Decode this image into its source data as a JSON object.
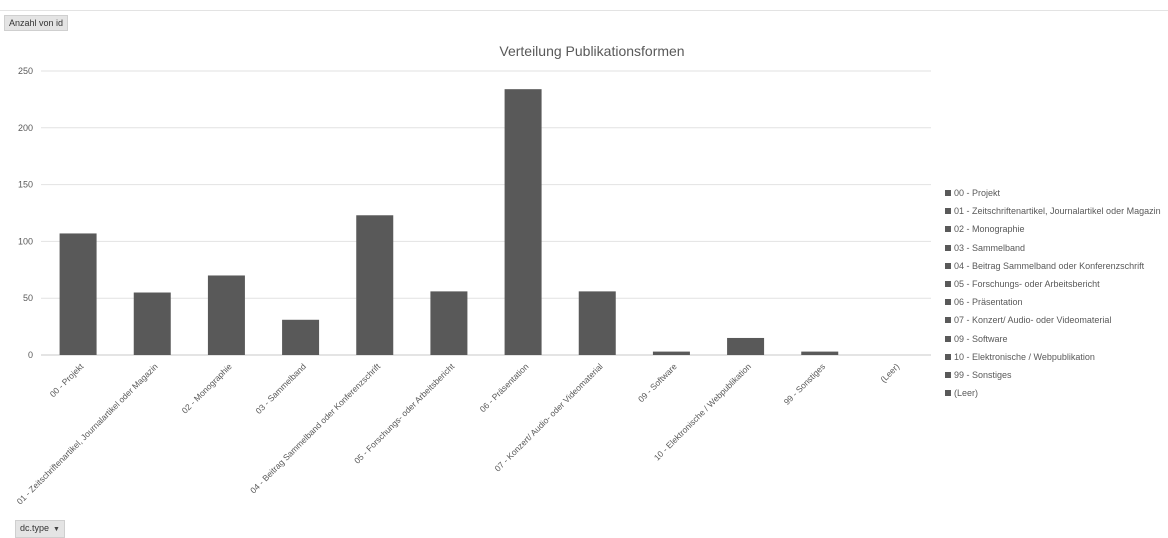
{
  "values_field_button": "Anzahl von id",
  "axis_field_button": "dc.type",
  "axis_field_arrow": "▼",
  "chart_data": {
    "type": "bar",
    "title": "Verteilung Publikationsformen",
    "xlabel": "",
    "ylabel": "",
    "ylim": [
      0,
      250
    ],
    "yticks": [
      0,
      50,
      100,
      150,
      200,
      250
    ],
    "grid": true,
    "legend_position": "right",
    "bar_color": "#595959",
    "categories": [
      "00 - Projekt",
      "01 - Zeitschriftenartikel, Journalartikel oder Magazin",
      "02 - Monographie",
      "03 - Sammelband",
      "04 - Beitrag Sammelband oder Konferenzschrift",
      "05 - Forschungs- oder Arbeitsbericht",
      "06 - Präsentation",
      "07 - Konzert/ Audio- oder Videomaterial",
      "09 - Software",
      "10 - Elektronische / Webpublikation",
      "99 - Sonstiges",
      "(Leer)"
    ],
    "values": [
      107,
      55,
      70,
      31,
      123,
      56,
      234,
      56,
      3,
      15,
      3,
      0
    ]
  }
}
